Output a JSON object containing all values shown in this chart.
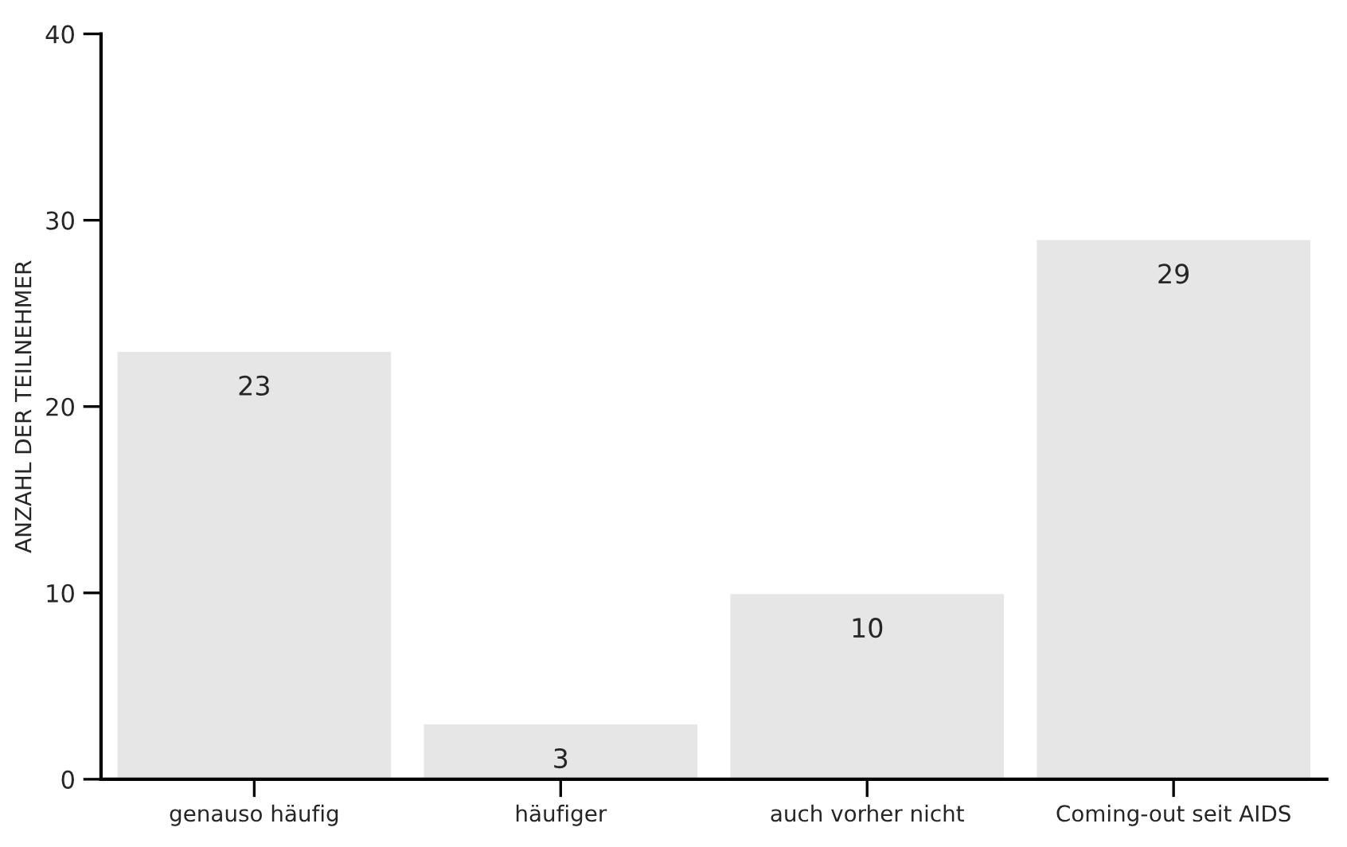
{
  "chart_data": {
    "type": "bar",
    "ylabel": "ANZAHL DER TEILNEHMER",
    "categories": [
      "genauso häufig",
      "häufiger",
      "auch vorher nicht",
      "Coming-out seit AIDS"
    ],
    "values": [
      23,
      3,
      10,
      29
    ],
    "color": "#e6e6e6",
    "data_labels": true,
    "ylim": [
      0,
      40
    ],
    "yticks": [
      0,
      10,
      20,
      30,
      40
    ],
    "grid": false
  }
}
